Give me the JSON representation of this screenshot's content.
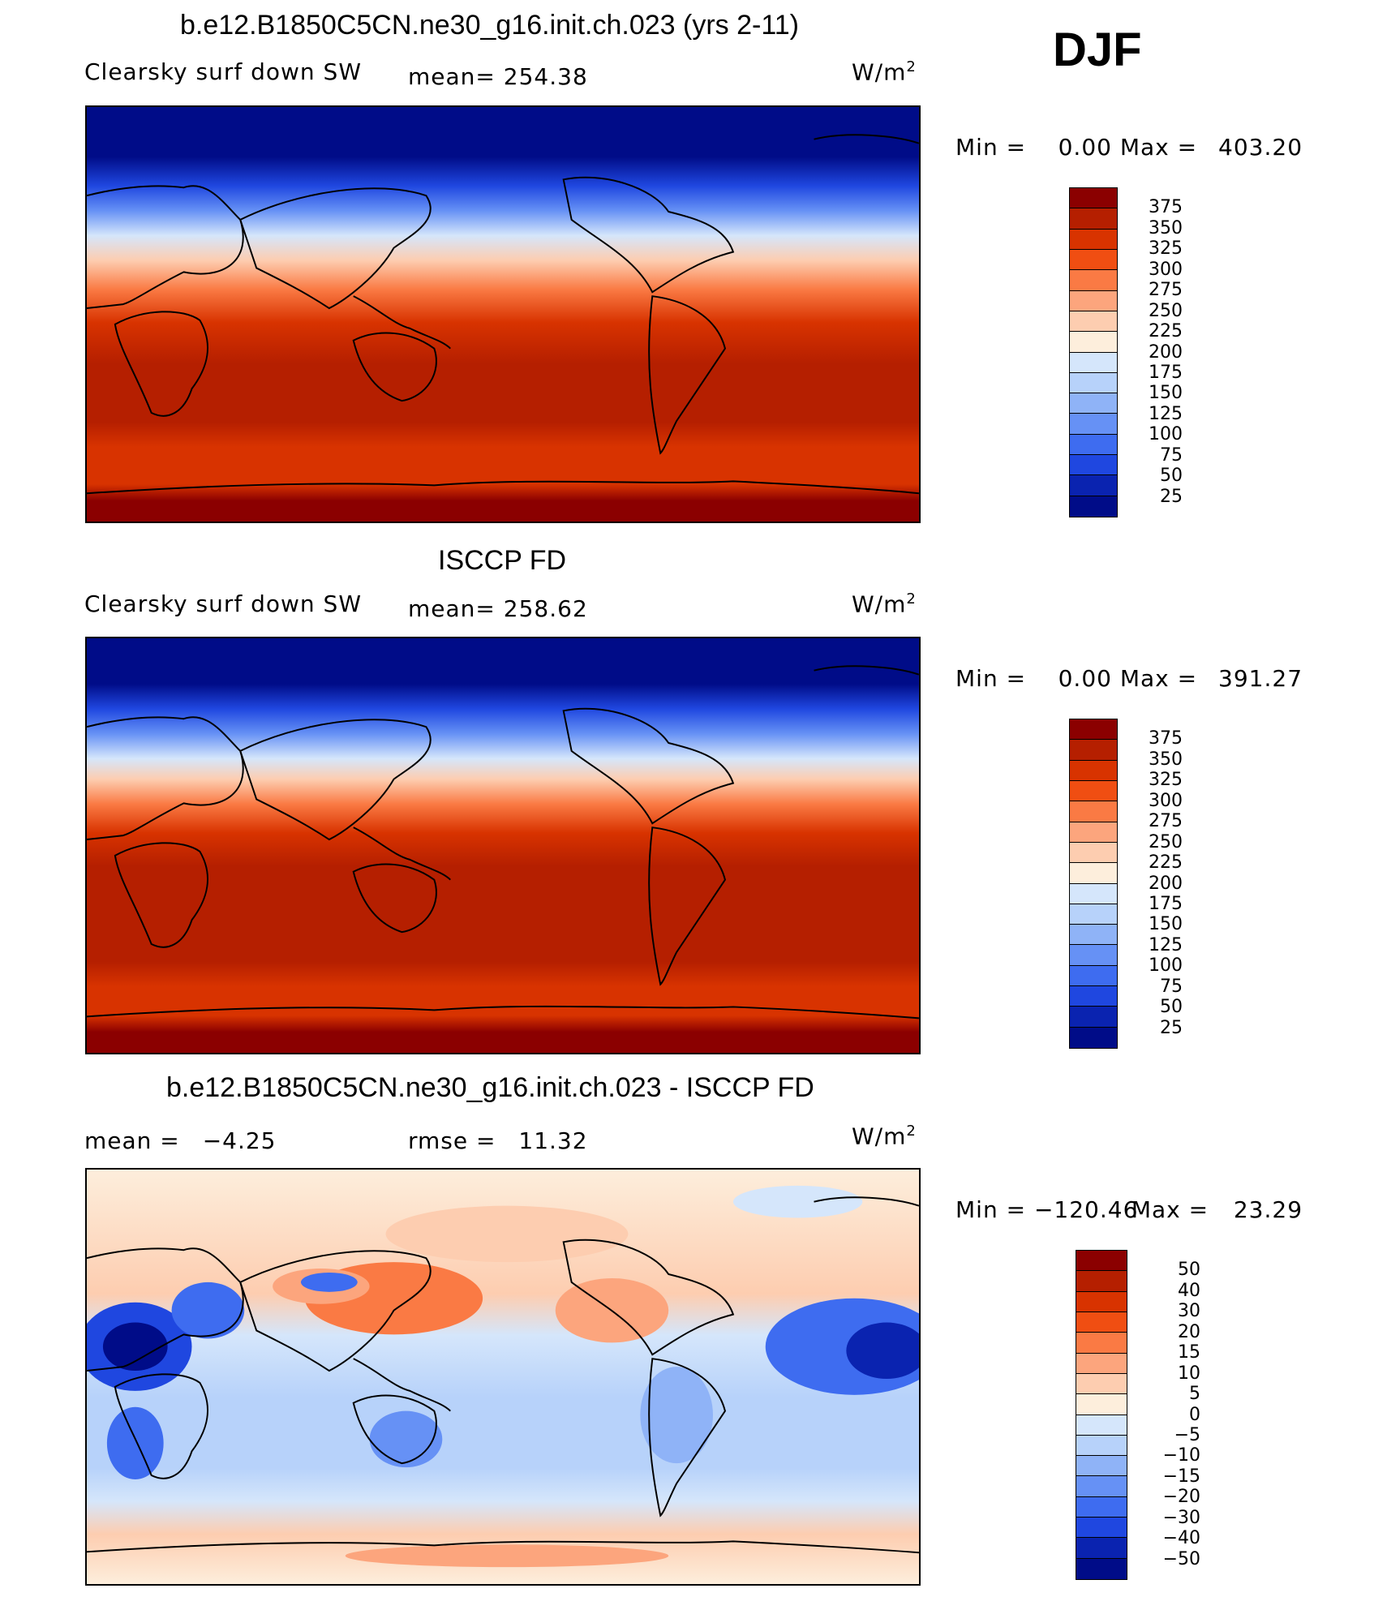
{
  "season": "DJF",
  "chart_data": [
    {
      "type": "heatmap",
      "title": "b.e12.B1850C5CN.ne30_g16.init.ch.023 (yrs 2-11)",
      "variable": "Clearsky surf down SW",
      "stat_label": "mean=",
      "stat_value": "254.38",
      "units": "W/m",
      "units_sup": "2",
      "min_label": "Min =",
      "min_value": "0.00",
      "max_label": "Max =",
      "max_value": "403.20",
      "colorbar_levels": [
        "375",
        "350",
        "325",
        "300",
        "275",
        "250",
        "225",
        "200",
        "175",
        "150",
        "125",
        "100",
        "75",
        "50",
        "25"
      ],
      "colorbar_colors": [
        "#8b0000",
        "#b51f00",
        "#d83300",
        "#f04e12",
        "#fa7a44",
        "#fca57d",
        "#fdcdb0",
        "#fdeedc",
        "#d5e6fb",
        "#b7d2fa",
        "#8fb3f7",
        "#6691f5",
        "#3e6cf0",
        "#1f47e0",
        "#0a23b0",
        "#000c88"
      ]
    },
    {
      "type": "heatmap",
      "title": "ISCCP FD",
      "variable": "Clearsky surf down SW",
      "stat_label": "mean=",
      "stat_value": "258.62",
      "units": "W/m",
      "units_sup": "2",
      "min_label": "Min =",
      "min_value": "0.00",
      "max_label": "Max =",
      "max_value": "391.27",
      "colorbar_levels": [
        "375",
        "350",
        "325",
        "300",
        "275",
        "250",
        "225",
        "200",
        "175",
        "150",
        "125",
        "100",
        "75",
        "50",
        "25"
      ],
      "colorbar_colors": [
        "#8b0000",
        "#b51f00",
        "#d83300",
        "#f04e12",
        "#fa7a44",
        "#fca57d",
        "#fdcdb0",
        "#fdeedc",
        "#d5e6fb",
        "#b7d2fa",
        "#8fb3f7",
        "#6691f5",
        "#3e6cf0",
        "#1f47e0",
        "#0a23b0",
        "#000c88"
      ]
    },
    {
      "type": "heatmap",
      "title": "b.e12.B1850C5CN.ne30_g16.init.ch.023 - ISCCP FD",
      "mean_label": "mean =",
      "mean_value": "−4.25",
      "rmse_label": "rmse =",
      "rmse_value": "11.32",
      "units": "W/m",
      "units_sup": "2",
      "min_label": "Min =",
      "min_value": "−120.46",
      "max_label": "Max =",
      "max_value": "23.29",
      "colorbar_levels": [
        "50",
        "40",
        "30",
        "20",
        "15",
        "10",
        "5",
        "0",
        "−5",
        "−10",
        "−15",
        "−20",
        "−30",
        "−40",
        "−50"
      ],
      "colorbar_colors": [
        "#8b0000",
        "#b51f00",
        "#d83300",
        "#f04e12",
        "#fa7a44",
        "#fca57d",
        "#fdcdb0",
        "#fdeedc",
        "#d5e6fb",
        "#b7d2fa",
        "#8fb3f7",
        "#6691f5",
        "#3e6cf0",
        "#1f47e0",
        "#0a23b0",
        "#000c88"
      ]
    }
  ]
}
